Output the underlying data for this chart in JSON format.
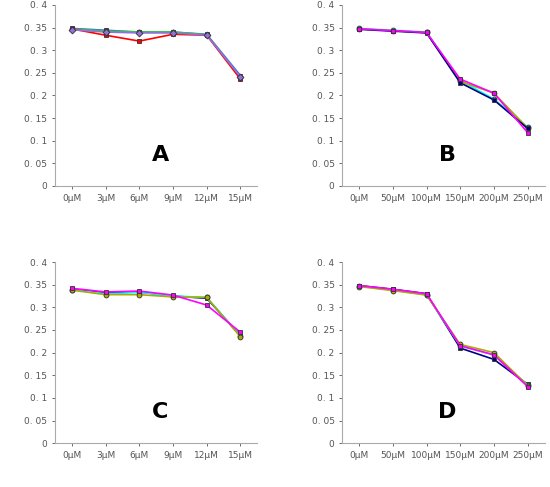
{
  "panel_A": {
    "xlabel_ticks": [
      "0μM",
      "3μM",
      "6μM",
      "9μM",
      "12μM",
      "15μM"
    ],
    "x": [
      0,
      1,
      2,
      3,
      4,
      5
    ],
    "label": "A",
    "series": [
      {
        "color": "#4169E1",
        "marker": "s",
        "values": [
          0.348,
          0.344,
          0.34,
          0.34,
          0.335,
          0.244
        ]
      },
      {
        "color": "#32CD32",
        "marker": "o",
        "values": [
          0.347,
          0.342,
          0.34,
          0.34,
          0.334,
          0.24
        ]
      },
      {
        "color": "#FF0000",
        "marker": "s",
        "values": [
          0.347,
          0.333,
          0.32,
          0.335,
          0.333,
          0.236
        ]
      },
      {
        "color": "#9370DB",
        "marker": "D",
        "values": [
          0.345,
          0.34,
          0.338,
          0.338,
          0.333,
          0.241
        ]
      }
    ],
    "ylim": [
      0,
      0.4
    ],
    "yticks": [
      0,
      0.05,
      0.1,
      0.15,
      0.2,
      0.25,
      0.3,
      0.35,
      0.4
    ],
    "ytick_labels": [
      "0",
      "0. 05",
      "0. 1",
      "0. 15",
      "0. 2",
      "0. 25",
      "0. 3",
      "0. 35",
      "0. 4"
    ]
  },
  "panel_B": {
    "xlabel_ticks": [
      "0μM",
      "50μM",
      "100μM",
      "150μM",
      "200μM",
      "250μM"
    ],
    "x": [
      0,
      1,
      2,
      3,
      4,
      5
    ],
    "label": "B",
    "series": [
      {
        "color": "#00FFFF",
        "marker": "o",
        "values": [
          0.348,
          0.344,
          0.34,
          0.233,
          0.192,
          0.13
        ]
      },
      {
        "color": "#AAAA00",
        "marker": "o",
        "values": [
          0.347,
          0.343,
          0.339,
          0.231,
          0.205,
          0.128
        ]
      },
      {
        "color": "#000080",
        "marker": "s",
        "values": [
          0.346,
          0.342,
          0.338,
          0.228,
          0.19,
          0.127
        ]
      },
      {
        "color": "#FF00FF",
        "marker": "s",
        "values": [
          0.347,
          0.343,
          0.339,
          0.236,
          0.205,
          0.118
        ]
      }
    ],
    "ylim": [
      0,
      0.4
    ],
    "yticks": [
      0,
      0.05,
      0.1,
      0.15,
      0.2,
      0.25,
      0.3,
      0.35,
      0.4
    ],
    "ytick_labels": [
      "0",
      "0. 05",
      "0. 1",
      "0. 15",
      "0. 2",
      "0. 25",
      "0. 3",
      "0. 35",
      "0. 4"
    ]
  },
  "panel_C": {
    "xlabel_ticks": [
      "0μM",
      "3μM",
      "6μM",
      "9μM",
      "12μM",
      "15μM"
    ],
    "x": [
      0,
      1,
      2,
      3,
      4,
      5
    ],
    "label": "C",
    "series": [
      {
        "color": "#000080",
        "marker": "s",
        "values": [
          0.34,
          0.332,
          0.334,
          0.325,
          0.32,
          0.238
        ]
      },
      {
        "color": "#00FFFF",
        "marker": "o",
        "values": [
          0.339,
          0.33,
          0.333,
          0.325,
          0.322,
          0.237
        ]
      },
      {
        "color": "#AAAA00",
        "marker": "o",
        "values": [
          0.338,
          0.328,
          0.328,
          0.323,
          0.322,
          0.235
        ]
      },
      {
        "color": "#FF00FF",
        "marker": "s",
        "values": [
          0.342,
          0.334,
          0.336,
          0.327,
          0.305,
          0.245
        ]
      }
    ],
    "ylim": [
      0,
      0.4
    ],
    "yticks": [
      0,
      0.05,
      0.1,
      0.15,
      0.2,
      0.25,
      0.3,
      0.35,
      0.4
    ],
    "ytick_labels": [
      "0",
      "0. 05",
      "0. 1",
      "0. 15",
      "0. 2",
      "0. 25",
      "0. 3",
      "0. 35",
      "0. 4"
    ]
  },
  "panel_D": {
    "xlabel_ticks": [
      "0μM",
      "50μM",
      "100μM",
      "150μM",
      "200μM",
      "250μM"
    ],
    "x": [
      0,
      1,
      2,
      3,
      4,
      5
    ],
    "label": "D",
    "series": [
      {
        "color": "#000080",
        "marker": "s",
        "values": [
          0.348,
          0.34,
          0.33,
          0.21,
          0.185,
          0.13
        ]
      },
      {
        "color": "#00FFFF",
        "marker": "o",
        "values": [
          0.347,
          0.338,
          0.328,
          0.215,
          0.195,
          0.128
        ]
      },
      {
        "color": "#AAAA00",
        "marker": "o",
        "values": [
          0.346,
          0.337,
          0.327,
          0.218,
          0.2,
          0.127
        ]
      },
      {
        "color": "#FF00FF",
        "marker": "s",
        "values": [
          0.348,
          0.34,
          0.33,
          0.215,
          0.195,
          0.125
        ]
      }
    ],
    "ylim": [
      0,
      0.4
    ],
    "yticks": [
      0,
      0.05,
      0.1,
      0.15,
      0.2,
      0.25,
      0.3,
      0.35,
      0.4
    ],
    "ytick_labels": [
      "0",
      "0. 05",
      "0. 1",
      "0. 15",
      "0. 2",
      "0. 25",
      "0. 3",
      "0. 35",
      "0. 4"
    ]
  },
  "background_color": "#ffffff",
  "panel_bg": "#ffffff",
  "label_fontsize": 16,
  "tick_fontsize": 6.5,
  "linewidth": 1.2,
  "markersize": 3.5
}
